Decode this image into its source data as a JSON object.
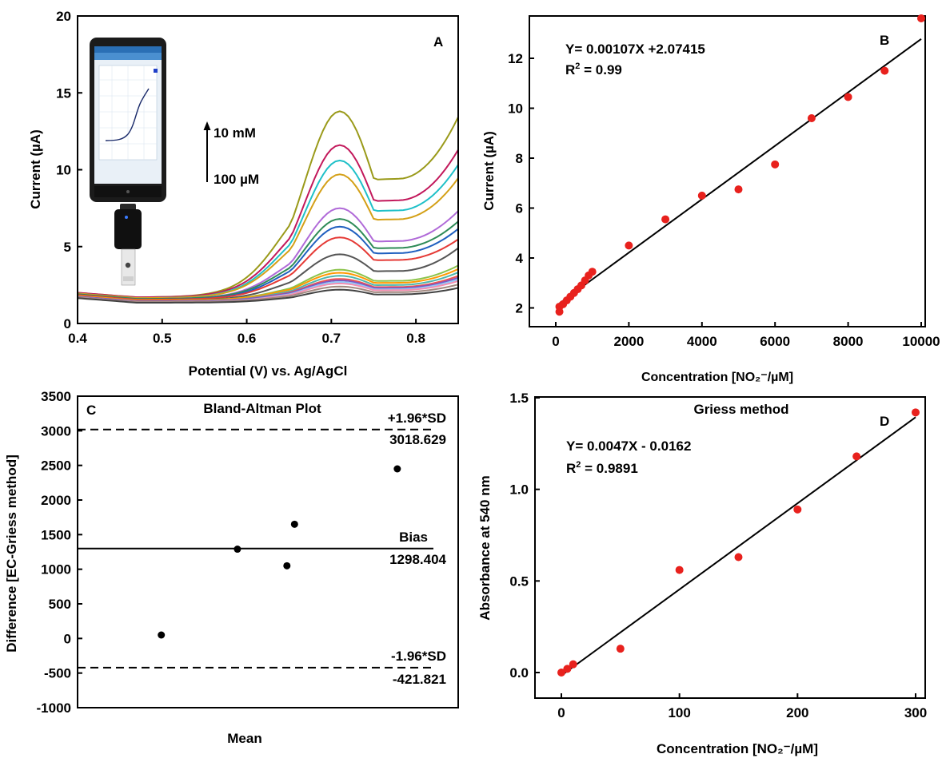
{
  "chart_data": [
    {
      "panel": "A",
      "type": "line",
      "xlabel": "Potential (V) vs. Ag/AgCl",
      "ylabel": "Current (µA)",
      "xlim": [
        0.4,
        0.85
      ],
      "ylim": [
        0,
        20
      ],
      "xticks": [
        "0.4",
        "0.5",
        "0.6",
        "0.7",
        "0.8"
      ],
      "yticks": [
        "0",
        "5",
        "10",
        "15",
        "20"
      ],
      "annotation_top": "10 mM",
      "annotation_bottom": "100 µM",
      "peak_x": 0.71,
      "series": [
        {
          "color": "#9a9a1a",
          "base": 1.7,
          "peak": 13.8
        },
        {
          "color": "#c2185b",
          "base": 1.7,
          "peak": 11.6
        },
        {
          "color": "#1fc0c8",
          "base": 1.65,
          "peak": 10.6
        },
        {
          "color": "#d4a017",
          "base": 1.65,
          "peak": 9.7
        },
        {
          "color": "#b06ad8",
          "base": 1.6,
          "peak": 7.5
        },
        {
          "color": "#2e8b57",
          "base": 1.6,
          "peak": 6.8
        },
        {
          "color": "#1f5fbf",
          "base": 1.55,
          "peak": 6.3
        },
        {
          "color": "#e53935",
          "base": 1.55,
          "peak": 5.6
        },
        {
          "color": "#555555",
          "base": 1.5,
          "peak": 4.5
        },
        {
          "color": "#8bc34a",
          "base": 1.5,
          "peak": 3.5
        },
        {
          "color": "#ff9800",
          "base": 1.5,
          "peak": 3.3
        },
        {
          "color": "#4db6ac",
          "base": 1.45,
          "peak": 3.1
        },
        {
          "color": "#ef5350",
          "base": 1.45,
          "peak": 2.9
        },
        {
          "color": "#7e57c2",
          "base": 1.45,
          "peak": 2.8
        },
        {
          "color": "#90caf9",
          "base": 1.4,
          "peak": 2.7
        },
        {
          "color": "#f48fb1",
          "base": 1.4,
          "peak": 2.6
        },
        {
          "color": "#a1887f",
          "base": 1.4,
          "peak": 2.4
        },
        {
          "color": "#424242",
          "base": 1.35,
          "peak": 2.2
        }
      ]
    },
    {
      "panel": "B",
      "type": "scatter",
      "xlabel": "Concentration [NO₂⁻/µM]",
      "ylabel": "Current (µA)",
      "xlim": [
        -400,
        10000
      ],
      "ylim": [
        1.5,
        13.6
      ],
      "xticks": [
        "0",
        "2000",
        "4000",
        "6000",
        "8000",
        "10000"
      ],
      "yticks": [
        "2",
        "4",
        "6",
        "8",
        "10",
        "12"
      ],
      "equation": "Y= 0.00107X +2.07415",
      "r2_label": "R",
      "r2_value": " = 0.99",
      "fit": {
        "slope": 0.00107,
        "intercept": 2.07415,
        "x0": 100,
        "x1": 10000
      },
      "points": [
        [
          100,
          1.85
        ],
        [
          100,
          2.05
        ],
        [
          200,
          2.15
        ],
        [
          300,
          2.3
        ],
        [
          400,
          2.45
        ],
        [
          500,
          2.6
        ],
        [
          600,
          2.75
        ],
        [
          700,
          2.9
        ],
        [
          800,
          3.1
        ],
        [
          900,
          3.3
        ],
        [
          1000,
          3.45
        ],
        [
          2000,
          4.5
        ],
        [
          3000,
          5.55
        ],
        [
          4000,
          6.5
        ],
        [
          5000,
          6.75
        ],
        [
          6000,
          7.75
        ],
        [
          7000,
          9.6
        ],
        [
          8000,
          10.45
        ],
        [
          9000,
          11.5
        ],
        [
          10000,
          13.6
        ]
      ]
    },
    {
      "panel": "C",
      "type": "scatter",
      "title": "Bland-Altman Plot",
      "xlabel": "Mean",
      "ylabel": "Difference [EC-Griess method]",
      "ylim": [
        -1000,
        3500
      ],
      "yticks": [
        "-1000",
        "-500",
        "0",
        "500",
        "1000",
        "1500",
        "2000",
        "2500",
        "3000",
        "3500"
      ],
      "upper_label": "+1.96*SD",
      "upper_value": "3018.629",
      "bias_label": "Bias",
      "bias_value": "1298.404",
      "lower_label": "-1.96*SD",
      "lower_value": "-421.821",
      "upper": 3018.629,
      "bias": 1298.404,
      "lower": -421.821,
      "points": [
        [
          0.22,
          50
        ],
        [
          0.42,
          1290
        ],
        [
          0.55,
          1050
        ],
        [
          0.57,
          1650
        ],
        [
          0.84,
          2450
        ]
      ]
    },
    {
      "panel": "D",
      "type": "scatter",
      "title": "Griess method",
      "xlabel": "Concentration [NO₂⁻/µM]",
      "ylabel": "Absorbance at 540 nm",
      "xlim": [
        -20,
        320
      ],
      "ylim": [
        -0.13,
        1.5
      ],
      "xticks": [
        "0",
        "100",
        "200",
        "300"
      ],
      "yticks": [
        "0.0",
        "0.5",
        "1.0",
        "1.5"
      ],
      "equation": "Y= 0.0047X - 0.0162",
      "r2_label": "R",
      "r2_value": " = 0.9891",
      "fit": {
        "slope": 0.0047,
        "intercept": -0.0162,
        "x0": 0,
        "x1": 300
      },
      "points": [
        [
          0,
          0.0
        ],
        [
          5,
          0.02
        ],
        [
          10,
          0.045
        ],
        [
          50,
          0.13
        ],
        [
          100,
          0.56
        ],
        [
          150,
          0.63
        ],
        [
          200,
          0.89
        ],
        [
          250,
          1.18
        ],
        [
          300,
          1.42
        ]
      ]
    }
  ],
  "panels": {
    "a": {
      "letter": "A"
    },
    "b": {
      "letter": "B"
    },
    "c": {
      "letter": "C"
    },
    "d": {
      "letter": "D"
    }
  },
  "colors": {
    "points": "#e8211d",
    "axis": "#000000",
    "phone_body": "#1b1b1b",
    "phone_screen": "#e9f0f7"
  },
  "icons": [
    "smartphone-with-sensor-image"
  ]
}
